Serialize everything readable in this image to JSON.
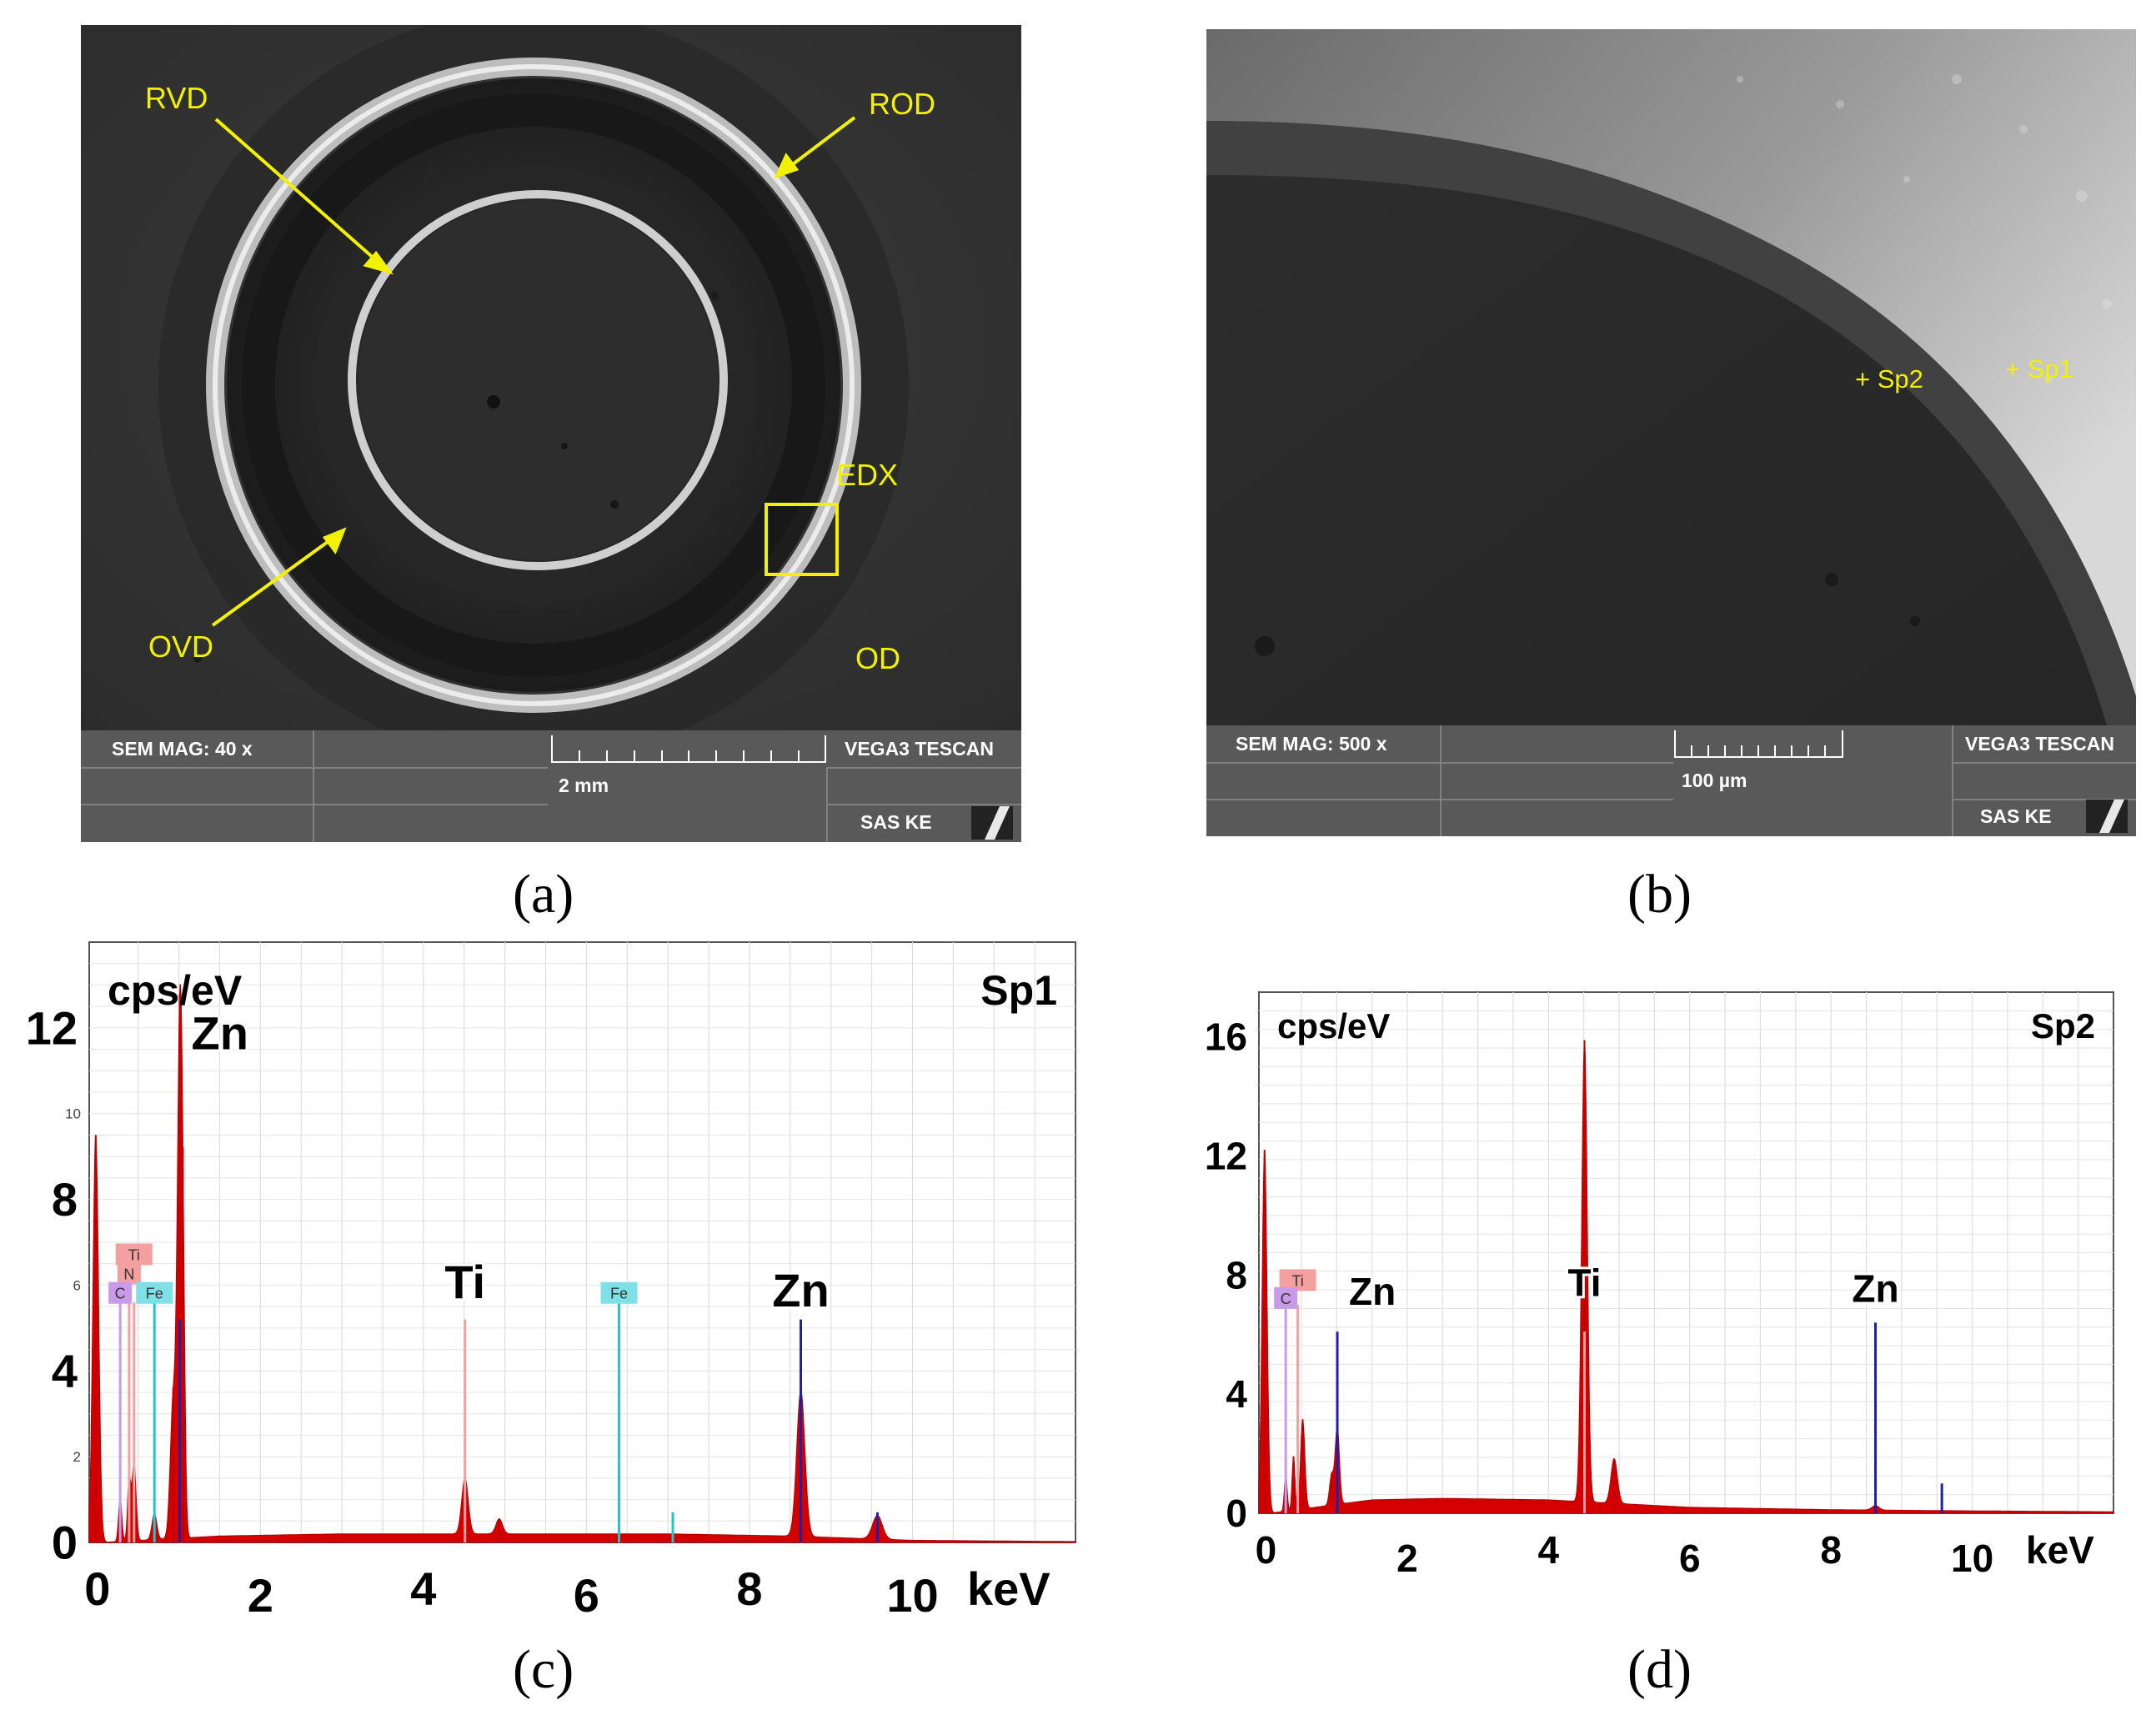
{
  "panels": {
    "a": {
      "caption": "(a)",
      "labels": {
        "rvd": "RVD",
        "rod": "ROD",
        "edx": "EDX",
        "ovd": "OVD",
        "od": "OD"
      },
      "info_bar": {
        "mag": "SEM MAG: 40 x",
        "scale": "2 mm",
        "instrument": "VEGA3 TESCAN",
        "lab": "SAS KE"
      }
    },
    "b": {
      "caption": "(b)",
      "labels": {
        "sp1": "+ Sp1",
        "sp2": "+ Sp2"
      },
      "info_bar": {
        "mag": "SEM MAG: 500 x",
        "scale": "100 µm",
        "instrument": "VEGA3 TESCAN",
        "lab": "SAS KE"
      }
    },
    "c": {
      "caption": "(c)"
    },
    "d": {
      "caption": "(d)"
    }
  },
  "colors": {
    "spectrum": "#d40000",
    "zn_line": "#1f1fa8",
    "fe_line": "#1fc8c8",
    "ti_marker": "#f4a0a0",
    "c_marker": "#c89ae8",
    "fe_marker": "#7fe0e8"
  },
  "chart_data": [
    {
      "type": "line",
      "title": "Sp1",
      "ylabel": "cps/eV",
      "xlabel": "keV",
      "x_ticks": [
        "0",
        "2",
        "4",
        "6",
        "8",
        "10"
      ],
      "y_ticks": [
        "0",
        "4",
        "8",
        "12"
      ],
      "y_minor_ticks": [
        "2",
        "6",
        "10"
      ],
      "xlim": [
        -0.1,
        12
      ],
      "ylim": [
        0,
        14
      ],
      "peak_labels": [
        {
          "text": "Zn",
          "x": 1.01,
          "y": 11.5
        },
        {
          "text": "Ti",
          "x": 4.51,
          "y": 5.7
        },
        {
          "text": "Zn",
          "x": 8.63,
          "y": 5.5
        }
      ],
      "element_markers": [
        {
          "text": "Ti",
          "x": 0.45,
          "y": 6.7,
          "color": "ti"
        },
        {
          "text": "N",
          "x": 0.39,
          "y": 6.25,
          "color": "ti"
        },
        {
          "text": "C",
          "x": 0.28,
          "y": 5.8,
          "color": "c"
        },
        {
          "text": "Fe",
          "x": 0.7,
          "y": 5.8,
          "color": "fe"
        },
        {
          "text": "Fe",
          "x": 6.4,
          "y": 5.8,
          "color": "fe"
        }
      ],
      "element_lines": [
        {
          "element": "C",
          "x": 0.28,
          "height": 5.6,
          "color": "c"
        },
        {
          "element": "N",
          "x": 0.39,
          "height": 5.6,
          "color": "ti"
        },
        {
          "element": "Ti",
          "x": 0.45,
          "height": 5.6,
          "color": "ti"
        },
        {
          "element": "Fe",
          "x": 0.7,
          "height": 5.6,
          "color": "fe"
        },
        {
          "element": "Zn",
          "x": 1.01,
          "height": 5.2,
          "color": "zn"
        },
        {
          "element": "Ti",
          "x": 4.51,
          "height": 5.2,
          "color": "ti"
        },
        {
          "element": "Fe",
          "x": 6.4,
          "height": 5.6,
          "color": "fe"
        },
        {
          "element": "Fe",
          "x": 7.06,
          "height": 0.7,
          "color": "fe"
        },
        {
          "element": "Zn",
          "x": 8.63,
          "height": 5.2,
          "color": "zn"
        },
        {
          "element": "Zn",
          "x": 9.57,
          "height": 0.7,
          "color": "zn"
        }
      ],
      "background": [
        {
          "x": 1.5,
          "y": 0.15
        },
        {
          "x": 3.0,
          "y": 0.2
        },
        {
          "x": 5.0,
          "y": 0.2
        },
        {
          "x": 7.0,
          "y": 0.2
        },
        {
          "x": 8.5,
          "y": 0.15
        },
        {
          "x": 10.0,
          "y": 0.05
        },
        {
          "x": 12.0,
          "y": 0.02
        }
      ],
      "peaks": [
        {
          "x": -0.02,
          "height": 9.5,
          "width": 0.035
        },
        {
          "x": 0.28,
          "height": 1.0,
          "width": 0.02
        },
        {
          "x": 0.39,
          "height": 1.4,
          "width": 0.02
        },
        {
          "x": 0.45,
          "height": 1.8,
          "width": 0.025
        },
        {
          "x": 0.7,
          "height": 0.6,
          "width": 0.03
        },
        {
          "x": 0.93,
          "height": 3.2,
          "width": 0.035
        },
        {
          "x": 1.01,
          "height": 11.2,
          "width": 0.03
        },
        {
          "x": 1.05,
          "height": 4.5,
          "width": 0.025
        },
        {
          "x": 4.51,
          "height": 1.3,
          "width": 0.04
        },
        {
          "x": 4.93,
          "height": 0.35,
          "width": 0.04
        },
        {
          "x": 8.63,
          "height": 3.4,
          "width": 0.05
        },
        {
          "x": 9.57,
          "height": 0.55,
          "width": 0.06
        }
      ]
    },
    {
      "type": "line",
      "title": "Sp2",
      "ylabel": "cps/eV",
      "xlabel": "keV",
      "x_ticks": [
        "0",
        "2",
        "4",
        "6",
        "8",
        "10"
      ],
      "y_ticks": [
        "0",
        "4",
        "8",
        "12",
        "16"
      ],
      "xlim": [
        -0.1,
        12
      ],
      "ylim": [
        0,
        17.5
      ],
      "peak_labels": [
        {
          "text": "Zn",
          "x": 1.01,
          "y": 7.0
        },
        {
          "text": "Ti",
          "x": 4.51,
          "y": 7.3
        },
        {
          "text": "Zn",
          "x": 8.63,
          "y": 7.1
        }
      ],
      "element_markers": [
        {
          "text": "Ti",
          "x": 0.45,
          "y": 7.8,
          "color": "ti"
        },
        {
          "text": "C",
          "x": 0.28,
          "y": 7.2,
          "color": "c"
        }
      ],
      "element_lines": [
        {
          "element": "C",
          "x": 0.28,
          "height": 7.0,
          "color": "c"
        },
        {
          "element": "Ti",
          "x": 0.45,
          "height": 7.0,
          "color": "ti"
        },
        {
          "element": "Zn",
          "x": 1.01,
          "height": 6.1,
          "color": "zn"
        },
        {
          "element": "Ti",
          "x": 4.51,
          "height": 6.1,
          "color": "ti"
        },
        {
          "element": "Zn",
          "x": 8.63,
          "height": 6.4,
          "color": "zn"
        },
        {
          "element": "Zn",
          "x": 9.57,
          "height": 1.0,
          "color": "zn"
        }
      ],
      "background": [
        {
          "x": 1.5,
          "y": 0.45
        },
        {
          "x": 2.5,
          "y": 0.5
        },
        {
          "x": 4.0,
          "y": 0.45
        },
        {
          "x": 6.0,
          "y": 0.2
        },
        {
          "x": 8.0,
          "y": 0.12
        },
        {
          "x": 10.0,
          "y": 0.08
        },
        {
          "x": 12.0,
          "y": 0.05
        }
      ],
      "peaks": [
        {
          "x": -0.02,
          "height": 12.2,
          "width": 0.035
        },
        {
          "x": 0.28,
          "height": 1.2,
          "width": 0.02
        },
        {
          "x": 0.39,
          "height": 1.8,
          "width": 0.02
        },
        {
          "x": 0.52,
          "height": 3.0,
          "width": 0.03
        },
        {
          "x": 0.93,
          "height": 1.0,
          "width": 0.03
        },
        {
          "x": 1.01,
          "height": 2.6,
          "width": 0.03
        },
        {
          "x": 4.51,
          "height": 15.5,
          "width": 0.04
        },
        {
          "x": 4.93,
          "height": 1.5,
          "width": 0.045
        },
        {
          "x": 8.63,
          "height": 0.15,
          "width": 0.05
        }
      ]
    }
  ]
}
